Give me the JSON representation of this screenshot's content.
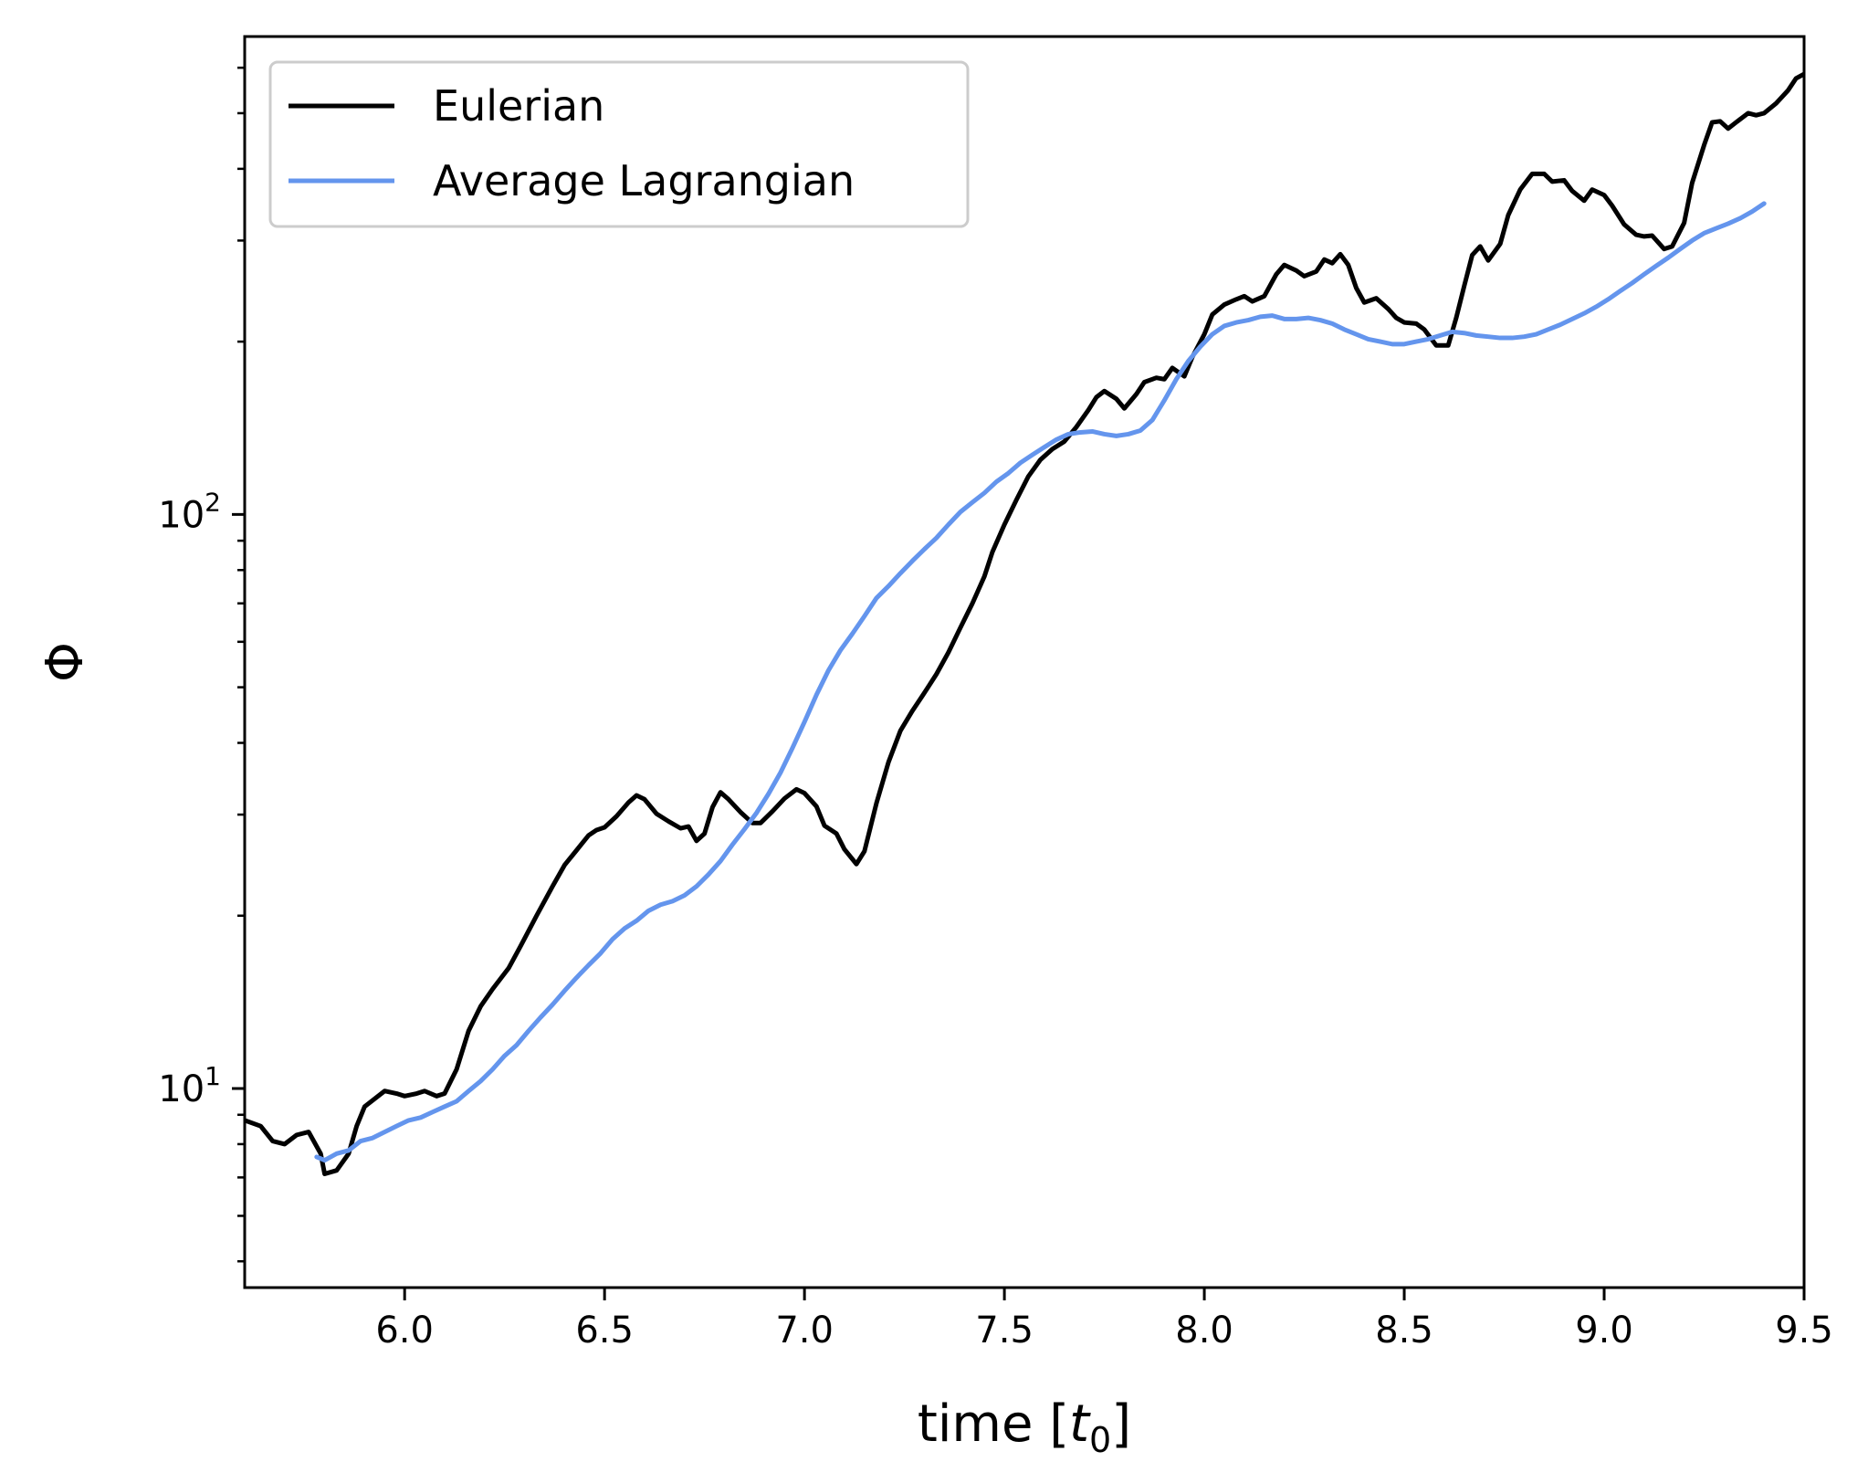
{
  "colors": {
    "eulerian": "#000000",
    "lagrangian": "#6495ED",
    "axes": "#000000",
    "legend_border": "#cccccc"
  },
  "chart_data": {
    "type": "line",
    "xlabel": "time [t₀]",
    "ylabel": "Φ",
    "xlim": [
      5.6,
      9.5
    ],
    "ylim": [
      4.5,
      680
    ],
    "yscale": "log",
    "grid": false,
    "legend": "top-left",
    "x_ticks": [
      {
        "value": 6.0,
        "label": "6.0"
      },
      {
        "value": 6.5,
        "label": "6.5"
      },
      {
        "value": 7.0,
        "label": "7.0"
      },
      {
        "value": 7.5,
        "label": "7.5"
      },
      {
        "value": 8.0,
        "label": "8.0"
      },
      {
        "value": 8.5,
        "label": "8.5"
      },
      {
        "value": 9.0,
        "label": "9.0"
      },
      {
        "value": 9.5,
        "label": "9.5"
      }
    ],
    "y_ticks": [
      {
        "value": 10,
        "base": "10",
        "exp": "1"
      },
      {
        "value": 100,
        "base": "10",
        "exp": "2"
      }
    ],
    "series": [
      {
        "name": "Eulerian",
        "color": "#000000",
        "points": [
          [
            5.6,
            8.8
          ],
          [
            5.64,
            8.6
          ],
          [
            5.67,
            8.1
          ],
          [
            5.7,
            8.0
          ],
          [
            5.73,
            8.3
          ],
          [
            5.76,
            8.4
          ],
          [
            5.79,
            7.7
          ],
          [
            5.8,
            7.1
          ],
          [
            5.83,
            7.2
          ],
          [
            5.86,
            7.7
          ],
          [
            5.88,
            8.6
          ],
          [
            5.9,
            9.3
          ],
          [
            5.95,
            9.9
          ],
          [
            5.98,
            9.8
          ],
          [
            6.0,
            9.7
          ],
          [
            6.03,
            9.8
          ],
          [
            6.05,
            9.9
          ],
          [
            6.08,
            9.7
          ],
          [
            6.1,
            9.8
          ],
          [
            6.13,
            10.8
          ],
          [
            6.16,
            12.6
          ],
          [
            6.19,
            13.9
          ],
          [
            6.22,
            14.9
          ],
          [
            6.26,
            16.2
          ],
          [
            6.29,
            17.7
          ],
          [
            6.33,
            20.0
          ],
          [
            6.37,
            22.5
          ],
          [
            6.4,
            24.5
          ],
          [
            6.43,
            26.0
          ],
          [
            6.46,
            27.6
          ],
          [
            6.48,
            28.2
          ],
          [
            6.5,
            28.5
          ],
          [
            6.53,
            29.8
          ],
          [
            6.56,
            31.5
          ],
          [
            6.58,
            32.4
          ],
          [
            6.6,
            31.9
          ],
          [
            6.63,
            30.1
          ],
          [
            6.66,
            29.2
          ],
          [
            6.69,
            28.4
          ],
          [
            6.71,
            28.6
          ],
          [
            6.73,
            27.0
          ],
          [
            6.75,
            27.8
          ],
          [
            6.77,
            30.9
          ],
          [
            6.79,
            32.8
          ],
          [
            6.81,
            31.9
          ],
          [
            6.84,
            30.3
          ],
          [
            6.87,
            29.0
          ],
          [
            6.89,
            29.0
          ],
          [
            6.92,
            30.4
          ],
          [
            6.95,
            32.0
          ],
          [
            6.98,
            33.2
          ],
          [
            7.0,
            32.7
          ],
          [
            7.03,
            31.0
          ],
          [
            7.05,
            28.7
          ],
          [
            7.08,
            27.8
          ],
          [
            7.1,
            26.1
          ],
          [
            7.13,
            24.6
          ],
          [
            7.15,
            25.9
          ],
          [
            7.18,
            31.4
          ],
          [
            7.21,
            37.0
          ],
          [
            7.24,
            42.0
          ],
          [
            7.27,
            45.5
          ],
          [
            7.3,
            48.9
          ],
          [
            7.33,
            52.7
          ],
          [
            7.36,
            57.5
          ],
          [
            7.39,
            63.5
          ],
          [
            7.42,
            70.0
          ],
          [
            7.45,
            78.0
          ],
          [
            7.47,
            86.0
          ],
          [
            7.5,
            96.0
          ],
          [
            7.53,
            106.0
          ],
          [
            7.56,
            116.5
          ],
          [
            7.59,
            124.5
          ],
          [
            7.62,
            130.0
          ],
          [
            7.65,
            134.0
          ],
          [
            7.68,
            142.0
          ],
          [
            7.71,
            152.0
          ],
          [
            7.73,
            160.0
          ],
          [
            7.75,
            164.0
          ],
          [
            7.78,
            159.0
          ],
          [
            7.8,
            153.0
          ],
          [
            7.83,
            162.0
          ],
          [
            7.85,
            170.0
          ],
          [
            7.88,
            173.0
          ],
          [
            7.9,
            172.0
          ],
          [
            7.92,
            180.0
          ],
          [
            7.95,
            174.0
          ],
          [
            7.97,
            188.0
          ],
          [
            8.0,
            206.0
          ],
          [
            8.02,
            223.0
          ],
          [
            8.05,
            232.0
          ],
          [
            8.08,
            237.0
          ],
          [
            8.1,
            240.0
          ],
          [
            8.12,
            235.0
          ],
          [
            8.15,
            240.0
          ],
          [
            8.18,
            262.0
          ],
          [
            8.2,
            272.0
          ],
          [
            8.23,
            266.0
          ],
          [
            8.25,
            260.0
          ],
          [
            8.28,
            265.0
          ],
          [
            8.3,
            278.0
          ],
          [
            8.32,
            274.0
          ],
          [
            8.34,
            284.0
          ],
          [
            8.36,
            272.0
          ],
          [
            8.38,
            248.0
          ],
          [
            8.4,
            234.0
          ],
          [
            8.43,
            238.0
          ],
          [
            8.46,
            228.0
          ],
          [
            8.48,
            220.0
          ],
          [
            8.5,
            216.0
          ],
          [
            8.53,
            215.0
          ],
          [
            8.55,
            210.0
          ],
          [
            8.58,
            197.0
          ],
          [
            8.61,
            197.0
          ],
          [
            8.63,
            220.0
          ],
          [
            8.65,
            250.0
          ],
          [
            8.67,
            283.0
          ],
          [
            8.69,
            293.0
          ],
          [
            8.71,
            277.0
          ],
          [
            8.74,
            296.0
          ],
          [
            8.76,
            332.0
          ],
          [
            8.79,
            368.0
          ],
          [
            8.82,
            392.0
          ],
          [
            8.85,
            392.0
          ],
          [
            8.87,
            380.0
          ],
          [
            8.9,
            382.0
          ],
          [
            8.92,
            366.0
          ],
          [
            8.95,
            352.0
          ],
          [
            8.97,
            368.0
          ],
          [
            9.0,
            360.0
          ],
          [
            9.02,
            345.0
          ],
          [
            9.05,
            320.0
          ],
          [
            9.08,
            307.0
          ],
          [
            9.1,
            305.0
          ],
          [
            9.12,
            306.0
          ],
          [
            9.15,
            290.0
          ],
          [
            9.17,
            293.0
          ],
          [
            9.2,
            322.0
          ],
          [
            9.22,
            378.0
          ],
          [
            9.25,
            440.0
          ],
          [
            9.27,
            482.0
          ],
          [
            9.29,
            484.0
          ],
          [
            9.31,
            470.0
          ],
          [
            9.33,
            482.0
          ],
          [
            9.36,
            500.0
          ],
          [
            9.38,
            496.0
          ],
          [
            9.4,
            500.0
          ],
          [
            9.43,
            520.0
          ],
          [
            9.46,
            548.0
          ],
          [
            9.48,
            575.0
          ],
          [
            9.5,
            585.0
          ]
        ]
      },
      {
        "name": "Average Lagrangian",
        "color": "#6495ED",
        "points": [
          [
            5.78,
            7.6
          ],
          [
            5.8,
            7.5
          ],
          [
            5.83,
            7.7
          ],
          [
            5.86,
            7.8
          ],
          [
            5.89,
            8.1
          ],
          [
            5.92,
            8.2
          ],
          [
            5.95,
            8.4
          ],
          [
            5.98,
            8.6
          ],
          [
            6.01,
            8.8
          ],
          [
            6.04,
            8.9
          ],
          [
            6.07,
            9.1
          ],
          [
            6.1,
            9.3
          ],
          [
            6.13,
            9.5
          ],
          [
            6.16,
            9.9
          ],
          [
            6.19,
            10.3
          ],
          [
            6.22,
            10.8
          ],
          [
            6.25,
            11.4
          ],
          [
            6.28,
            11.9
          ],
          [
            6.31,
            12.6
          ],
          [
            6.34,
            13.3
          ],
          [
            6.37,
            14.0
          ],
          [
            6.4,
            14.8
          ],
          [
            6.43,
            15.6
          ],
          [
            6.46,
            16.4
          ],
          [
            6.49,
            17.2
          ],
          [
            6.52,
            18.2
          ],
          [
            6.55,
            19.0
          ],
          [
            6.58,
            19.6
          ],
          [
            6.61,
            20.4
          ],
          [
            6.64,
            20.9
          ],
          [
            6.67,
            21.2
          ],
          [
            6.7,
            21.7
          ],
          [
            6.73,
            22.5
          ],
          [
            6.76,
            23.6
          ],
          [
            6.79,
            24.9
          ],
          [
            6.82,
            26.6
          ],
          [
            6.85,
            28.3
          ],
          [
            6.88,
            30.2
          ],
          [
            6.91,
            32.6
          ],
          [
            6.94,
            35.5
          ],
          [
            6.97,
            39.2
          ],
          [
            7.0,
            43.5
          ],
          [
            7.03,
            48.5
          ],
          [
            7.06,
            53.5
          ],
          [
            7.09,
            58.0
          ],
          [
            7.12,
            62.0
          ],
          [
            7.15,
            66.5
          ],
          [
            7.18,
            71.5
          ],
          [
            7.21,
            75.0
          ],
          [
            7.24,
            79.0
          ],
          [
            7.27,
            83.0
          ],
          [
            7.3,
            87.0
          ],
          [
            7.33,
            91.0
          ],
          [
            7.36,
            96.0
          ],
          [
            7.39,
            101.0
          ],
          [
            7.42,
            105.0
          ],
          [
            7.45,
            109.0
          ],
          [
            7.48,
            114.0
          ],
          [
            7.51,
            118.0
          ],
          [
            7.54,
            123.0
          ],
          [
            7.57,
            127.0
          ],
          [
            7.6,
            131.0
          ],
          [
            7.63,
            135.0
          ],
          [
            7.66,
            138.0
          ],
          [
            7.69,
            139.0
          ],
          [
            7.72,
            139.5
          ],
          [
            7.75,
            138.0
          ],
          [
            7.78,
            137.0
          ],
          [
            7.81,
            138.0
          ],
          [
            7.84,
            140.0
          ],
          [
            7.87,
            146.0
          ],
          [
            7.9,
            158.0
          ],
          [
            7.93,
            172.0
          ],
          [
            7.96,
            185.0
          ],
          [
            7.99,
            196.0
          ],
          [
            8.02,
            206.0
          ],
          [
            8.05,
            213.0
          ],
          [
            8.08,
            216.0
          ],
          [
            8.11,
            218.0
          ],
          [
            8.14,
            221.0
          ],
          [
            8.17,
            222.0
          ],
          [
            8.2,
            219.0
          ],
          [
            8.23,
            219.0
          ],
          [
            8.26,
            220.0
          ],
          [
            8.29,
            218.0
          ],
          [
            8.32,
            215.0
          ],
          [
            8.35,
            210.0
          ],
          [
            8.38,
            206.0
          ],
          [
            8.41,
            202.0
          ],
          [
            8.44,
            200.0
          ],
          [
            8.47,
            198.0
          ],
          [
            8.5,
            198.0
          ],
          [
            8.53,
            200.0
          ],
          [
            8.56,
            202.0
          ],
          [
            8.59,
            205.0
          ],
          [
            8.62,
            208.0
          ],
          [
            8.65,
            207.0
          ],
          [
            8.68,
            205.0
          ],
          [
            8.71,
            204.0
          ],
          [
            8.74,
            203.0
          ],
          [
            8.77,
            203.0
          ],
          [
            8.8,
            204.0
          ],
          [
            8.83,
            206.0
          ],
          [
            8.86,
            210.0
          ],
          [
            8.89,
            214.0
          ],
          [
            8.92,
            219.0
          ],
          [
            8.95,
            224.0
          ],
          [
            8.98,
            230.0
          ],
          [
            9.01,
            237.0
          ],
          [
            9.04,
            245.0
          ],
          [
            9.07,
            253.0
          ],
          [
            9.1,
            262.0
          ],
          [
            9.13,
            271.0
          ],
          [
            9.16,
            280.0
          ],
          [
            9.19,
            290.0
          ],
          [
            9.22,
            300.0
          ],
          [
            9.25,
            309.0
          ],
          [
            9.28,
            315.0
          ],
          [
            9.31,
            321.0
          ],
          [
            9.34,
            328.0
          ],
          [
            9.37,
            337.0
          ],
          [
            9.4,
            348.0
          ]
        ]
      }
    ]
  }
}
